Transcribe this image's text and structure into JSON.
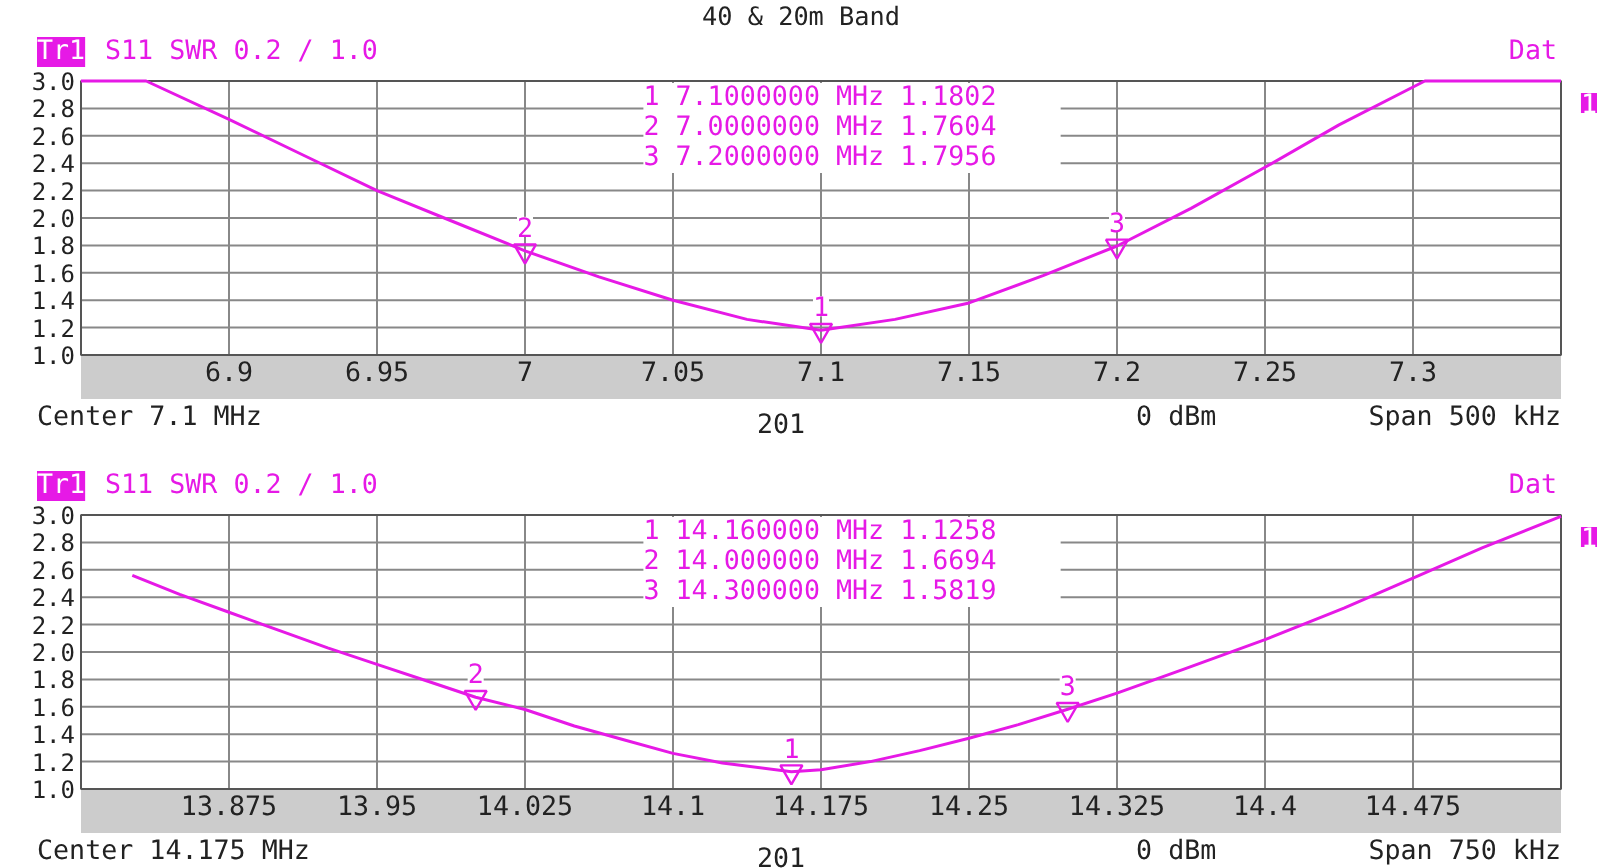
{
  "chart_data": [
    {
      "type": "line",
      "title": "40 & 20m Band",
      "xlim": [
        6.85,
        7.35
      ],
      "ylim": [
        1.0,
        3.0
      ],
      "xticks": [
        6.9,
        6.95,
        7,
        7.05,
        7.1,
        7.15,
        7.2,
        7.25,
        7.3
      ],
      "yticks": [
        {
          "value": 1.0,
          "label": "1.0"
        },
        {
          "value": 1.2,
          "label": "1.2"
        },
        {
          "value": 1.4,
          "label": "1.4"
        },
        {
          "value": 1.6,
          "label": "1.6"
        },
        {
          "value": 1.8,
          "label": "1.8"
        },
        {
          "value": 2.0,
          "label": "2.0"
        },
        {
          "value": 2.2,
          "label": "2.2"
        },
        {
          "value": 2.4,
          "label": "2.4"
        },
        {
          "value": 2.6,
          "label": "2.6"
        },
        {
          "value": 2.8,
          "label": "2.8"
        },
        {
          "value": 3.0,
          "label": "3.0"
        }
      ],
      "grid": true,
      "series": [
        {
          "color": "#e619e6",
          "x": [
            6.85,
            6.872,
            6.9,
            6.925,
            6.95,
            6.975,
            7.0,
            7.025,
            7.05,
            7.075,
            7.1,
            7.125,
            7.15,
            7.175,
            7.2,
            7.225,
            7.25,
            7.275,
            7.304,
            7.35
          ],
          "values": [
            3.0,
            3.0,
            2.72,
            2.46,
            2.2,
            1.98,
            1.7604,
            1.57,
            1.4,
            1.26,
            1.1802,
            1.26,
            1.38,
            1.58,
            1.7956,
            2.07,
            2.37,
            2.68,
            3.0,
            3.0
          ]
        }
      ],
      "annotations": [
        "Tr1",
        "S11 SWR 0.2 / 1.0",
        "Dat",
        "1",
        "1   7.1000000 MHz   1.1802",
        "2   7.0000000 MHz   1.7604",
        "3   7.2000000 MHz   1.7956",
        "Center 7.1 MHz",
        "201",
        "0 dBm",
        "Span 500 kHz",
        {
          "text": "1",
          "x": 7.1,
          "y": 1.1802
        },
        {
          "text": "2",
          "x": 7.0,
          "y": 1.7604
        },
        {
          "text": "3",
          "x": 7.2,
          "y": 1.7956
        }
      ]
    },
    {
      "type": "line",
      "xlim": [
        13.8,
        14.55
      ],
      "ylim": [
        1.0,
        3.0
      ],
      "xticks": [
        13.875,
        13.95,
        14.025,
        14.1,
        14.175,
        14.25,
        14.325,
        14.4,
        14.475
      ],
      "yticks": [
        {
          "value": 1.0,
          "label": "1.0"
        },
        {
          "value": 1.2,
          "label": "1.2"
        },
        {
          "value": 1.4,
          "label": "1.4"
        },
        {
          "value": 1.6,
          "label": "1.6"
        },
        {
          "value": 1.8,
          "label": "1.8"
        },
        {
          "value": 2.0,
          "label": "2.0"
        },
        {
          "value": 2.2,
          "label": "2.2"
        },
        {
          "value": 2.4,
          "label": "2.4"
        },
        {
          "value": 2.6,
          "label": "2.6"
        },
        {
          "value": 2.8,
          "label": "2.8"
        },
        {
          "value": 3.0,
          "label": "3.0"
        }
      ],
      "grid": true,
      "series": [
        {
          "color": "#e619e6",
          "x": [
            13.826,
            13.85,
            13.875,
            13.9,
            13.925,
            13.95,
            13.975,
            14.0,
            14.025,
            14.05,
            14.075,
            14.1,
            14.125,
            14.16,
            14.175,
            14.2,
            14.225,
            14.25,
            14.275,
            14.3,
            14.325,
            14.36,
            14.4,
            14.44,
            14.475,
            14.51,
            14.55
          ],
          "values": [
            2.56,
            2.42,
            2.29,
            2.16,
            2.03,
            1.91,
            1.79,
            1.6694,
            1.58,
            1.46,
            1.36,
            1.26,
            1.19,
            1.1258,
            1.14,
            1.2,
            1.28,
            1.37,
            1.47,
            1.5819,
            1.7,
            1.88,
            2.09,
            2.32,
            2.54,
            2.76,
            2.99
          ]
        }
      ],
      "annotations": [
        "Tr1",
        "S11 SWR 0.2 / 1.0",
        "Dat",
        "1",
        "1   14.160000 MHz   1.1258",
        "2   14.000000 MHz   1.6694",
        "3   14.300000 MHz   1.5819",
        "Center 14.175 MHz",
        "201",
        "0 dBm",
        "Span 750 kHz",
        {
          "text": "1",
          "x": 14.16,
          "y": 1.1258
        },
        {
          "text": "2",
          "x": 14.0,
          "y": 1.6694
        },
        {
          "text": "3",
          "x": 14.3,
          "y": 1.5819
        }
      ]
    }
  ]
}
